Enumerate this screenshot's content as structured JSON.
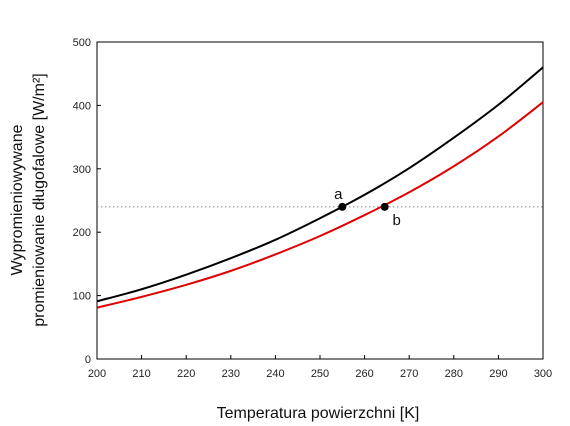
{
  "chart_data": {
    "type": "line",
    "title": "",
    "xlabel": "Temperatura powierzchni [K]",
    "ylabel": [
      "Wypromieniowywane",
      "promieniowanie długofalowe [W/m²]"
    ],
    "xlim": [
      200,
      300
    ],
    "ylim": [
      0,
      500
    ],
    "xticks": [
      200,
      210,
      220,
      230,
      240,
      250,
      260,
      270,
      280,
      290,
      300
    ],
    "yticks": [
      0,
      100,
      200,
      300,
      400,
      500
    ],
    "grid": false,
    "x": [
      200,
      210,
      220,
      230,
      240,
      250,
      260,
      270,
      280,
      290,
      300
    ],
    "series": [
      {
        "color": "#000000",
        "values": [
          91,
          110,
          133,
          159,
          188,
          222,
          259,
          301,
          349,
          401,
          460
        ]
      },
      {
        "color": "#e00000",
        "values": [
          81,
          98,
          117,
          139,
          165,
          194,
          227,
          263,
          304,
          351,
          405
        ]
      }
    ],
    "reference_line": {
      "y": 240,
      "style": "dotted",
      "color": "#888888"
    },
    "points": [
      {
        "label": "a",
        "x": 255,
        "y": 240
      },
      {
        "label": "b",
        "x": 264.5,
        "y": 240
      }
    ]
  }
}
